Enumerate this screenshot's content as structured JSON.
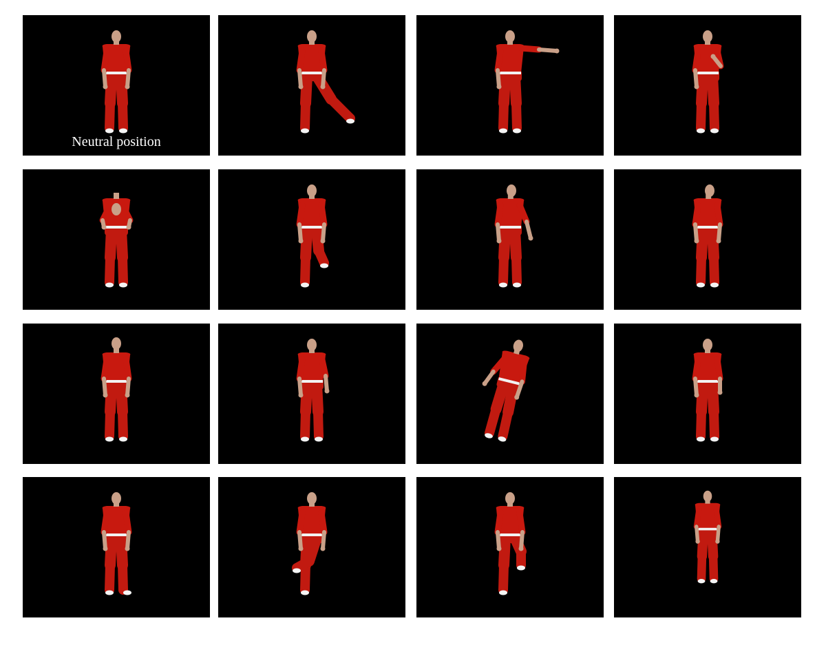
{
  "figure": {
    "caption": "Neutral position",
    "colors": {
      "panel_background": "#000000",
      "shirt": "#c8190f",
      "pants": "#c11a10",
      "skin": "#c9a088",
      "belt": "#f2f2f2",
      "shoes": "#f4f4f4"
    },
    "panels": [
      {
        "pose": "neutral-standing"
      },
      {
        "pose": "leg-raised-sideways"
      },
      {
        "pose": "arm-raised-sideways"
      },
      {
        "pose": "hand-on-chest"
      },
      {
        "pose": "bending-forward"
      },
      {
        "pose": "knee-raised-behind"
      },
      {
        "pose": "body-turned-arm-out"
      },
      {
        "pose": "head-turned"
      },
      {
        "pose": "head-tilted-back"
      },
      {
        "pose": "shoulder-raised"
      },
      {
        "pose": "leaning-sideways"
      },
      {
        "pose": "fist-clenched"
      },
      {
        "pose": "foot-turned-out"
      },
      {
        "pose": "leg-crossed-front"
      },
      {
        "pose": "knee-raised-front"
      },
      {
        "pose": "standing-smaller"
      }
    ]
  }
}
